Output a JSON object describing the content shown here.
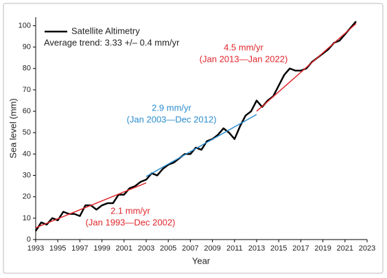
{
  "chart_data": {
    "type": "line",
    "x_label": "Year",
    "y_label": "Sea level (mm)",
    "annotation": "Average trend: 3.33 +/– 0.4 mm/yr",
    "xlim": [
      1993,
      2023
    ],
    "xticks": [
      1993,
      1995,
      1997,
      1999,
      2001,
      2003,
      2005,
      2007,
      2009,
      2011,
      2013,
      2015,
      2017,
      2019,
      2021,
      2023
    ],
    "ylim": [
      0,
      104
    ],
    "yticks": [
      0,
      10,
      20,
      30,
      40,
      50,
      60,
      70,
      80,
      90,
      100
    ],
    "series": [
      {
        "name": "Satellite Altimetry",
        "color": "#000000",
        "x": [
          1993,
          1993.5,
          1994,
          1994.5,
          1995,
          1995.5,
          1996,
          1996.5,
          1997,
          1997.5,
          1998,
          1998.5,
          1999,
          1999.5,
          2000,
          2000.5,
          2001,
          2001.5,
          2002,
          2002.5,
          2003,
          2003.5,
          2004,
          2004.5,
          2005,
          2005.5,
          2006,
          2006.5,
          2007,
          2007.5,
          2008,
          2008.5,
          2009,
          2009.5,
          2010,
          2010.5,
          2011,
          2011.5,
          2012,
          2012.5,
          2013,
          2013.5,
          2014,
          2014.5,
          2015,
          2015.5,
          2016,
          2016.5,
          2017,
          2017.5,
          2018,
          2018.5,
          2019,
          2019.5,
          2020,
          2020.5,
          2021,
          2021.5,
          2022
        ],
        "values": [
          4,
          8,
          7,
          10,
          9,
          13,
          12,
          12,
          11,
          16,
          16,
          14,
          16,
          17,
          17,
          21,
          21,
          24,
          25,
          27,
          28,
          31,
          30,
          33,
          35,
          36,
          38,
          40,
          40,
          43,
          42,
          46,
          47,
          49,
          52,
          50,
          47,
          53,
          58,
          60,
          65,
          62,
          65,
          67,
          72,
          77,
          80,
          79,
          79,
          80,
          83,
          85,
          87,
          89,
          92,
          93,
          96,
          99,
          102
        ]
      }
    ],
    "trends": [
      {
        "label": "2.1 mm/yr",
        "period": "(Jan 1993—Dec 2002)",
        "color": "#e0262b",
        "x": [
          1993,
          2003
        ],
        "values": [
          5.5,
          26.5
        ]
      },
      {
        "label": "2.9 mm/yr",
        "period": "(Jan 2003—Dec 2012)",
        "color": "#2a8ccf",
        "x": [
          2003,
          2013
        ],
        "values": [
          29.5,
          58.5
        ]
      },
      {
        "label": "4.5 mm/yr",
        "period": "(Jan 2013—Jan 2022)",
        "color": "#e0262b",
        "x": [
          2013,
          2022
        ],
        "values": [
          60,
          101
        ]
      }
    ]
  }
}
